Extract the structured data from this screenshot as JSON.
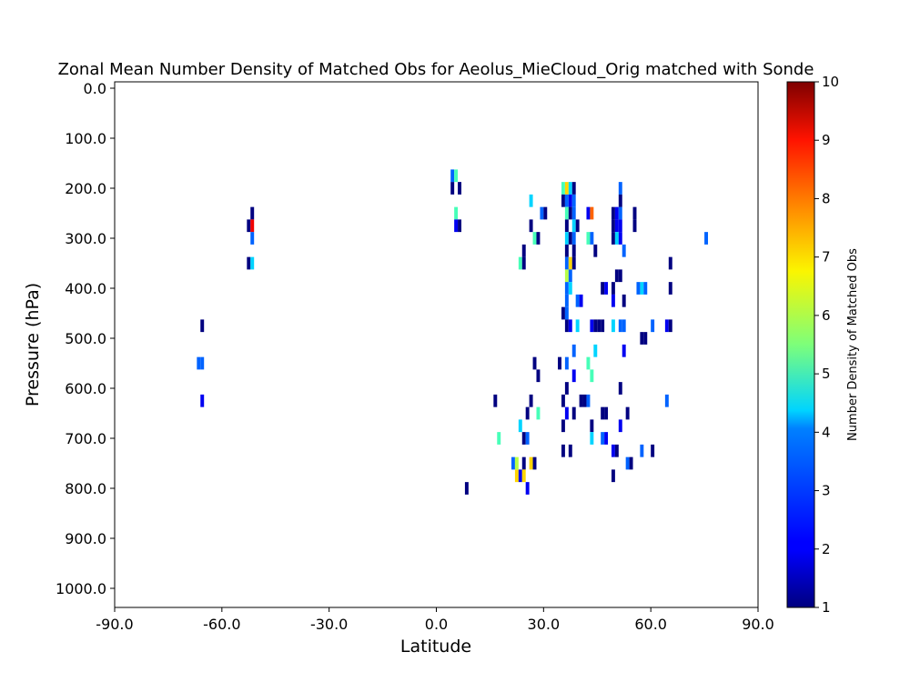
{
  "chart_data": {
    "type": "heatmap",
    "title": "Zonal Mean Number Density of Matched Obs for Aeolus_MieCloud_Orig matched with Sonde",
    "xlabel": "Latitude",
    "ylabel": "Pressure (hPa)",
    "xlim": [
      -90,
      90
    ],
    "ylim": [
      1000,
      0
    ],
    "y_inverted": true,
    "xticks": [
      "-90.0",
      "-60.0",
      "-30.0",
      "0.0",
      "30.0",
      "60.0",
      "90.0"
    ],
    "xtick_values": [
      -90,
      -60,
      -30,
      0,
      30,
      60,
      90
    ],
    "yticks": [
      "0.0",
      "100.0",
      "200.0",
      "300.0",
      "400.0",
      "500.0",
      "600.0",
      "700.0",
      "800.0",
      "900.0",
      "1000.0"
    ],
    "ytick_values": [
      0,
      100,
      200,
      300,
      400,
      500,
      600,
      700,
      800,
      900,
      1000
    ],
    "cell_width_deg": 1,
    "cell_height_hpa": 25,
    "colormap": "jet",
    "colorbar": {
      "label": "Number Density of Matched Obs",
      "vmin": 1,
      "vmax": 10,
      "ticks": [
        "1",
        "2",
        "3",
        "4",
        "5",
        "6",
        "7",
        "8",
        "9",
        "10"
      ]
    },
    "grid": false,
    "cells": [
      [
        -52,
        250,
        1
      ],
      [
        -53,
        275,
        1
      ],
      [
        -52,
        275,
        9
      ],
      [
        -52,
        300,
        3
      ],
      [
        -53,
        350,
        1
      ],
      [
        -52,
        350,
        4
      ],
      [
        -66,
        475,
        1
      ],
      [
        -67,
        550,
        3
      ],
      [
        -66,
        550,
        3
      ],
      [
        -66,
        625,
        2
      ],
      [
        4,
        175,
        3
      ],
      [
        5,
        175,
        5
      ],
      [
        4,
        200,
        1
      ],
      [
        6,
        200,
        1
      ],
      [
        5,
        250,
        5
      ],
      [
        5,
        275,
        2
      ],
      [
        6,
        275,
        1
      ],
      [
        8,
        800,
        1
      ],
      [
        26,
        225,
        4
      ],
      [
        29,
        250,
        3
      ],
      [
        30,
        250,
        1
      ],
      [
        26,
        275,
        1
      ],
      [
        27,
        300,
        5
      ],
      [
        28,
        300,
        1
      ],
      [
        24,
        325,
        1
      ],
      [
        23,
        350,
        5
      ],
      [
        24,
        350,
        1
      ],
      [
        35,
        200,
        5
      ],
      [
        36,
        200,
        7
      ],
      [
        37,
        200,
        4
      ],
      [
        38,
        200,
        1
      ],
      [
        35,
        225,
        1
      ],
      [
        36,
        225,
        3
      ],
      [
        37,
        225,
        2
      ],
      [
        38,
        225,
        3
      ],
      [
        36,
        250,
        5
      ],
      [
        37,
        250,
        1
      ],
      [
        38,
        250,
        3
      ],
      [
        36,
        275,
        1
      ],
      [
        38,
        275,
        4
      ],
      [
        39,
        275,
        1
      ],
      [
        36,
        300,
        4
      ],
      [
        37,
        300,
        1
      ],
      [
        38,
        300,
        3
      ],
      [
        36,
        325,
        1
      ],
      [
        38,
        325,
        1
      ],
      [
        36,
        350,
        3
      ],
      [
        37,
        350,
        7
      ],
      [
        38,
        350,
        1
      ],
      [
        36,
        375,
        6
      ],
      [
        37,
        375,
        3
      ],
      [
        36,
        400,
        3
      ],
      [
        37,
        400,
        4
      ],
      [
        36,
        425,
        3
      ],
      [
        39,
        425,
        3
      ],
      [
        40,
        425,
        2
      ],
      [
        35,
        450,
        1
      ],
      [
        36,
        450,
        3
      ],
      [
        36,
        475,
        1
      ],
      [
        37,
        475,
        2
      ],
      [
        39,
        475,
        4
      ],
      [
        42,
        250,
        2
      ],
      [
        43,
        250,
        8
      ],
      [
        42,
        300,
        5
      ],
      [
        43,
        300,
        3
      ],
      [
        44,
        325,
        1
      ],
      [
        46,
        400,
        1
      ],
      [
        47,
        400,
        2
      ],
      [
        43,
        475,
        2
      ],
      [
        44,
        475,
        1
      ],
      [
        45,
        475,
        1
      ],
      [
        46,
        475,
        1
      ],
      [
        49,
        250,
        1
      ],
      [
        50,
        250,
        2
      ],
      [
        51,
        250,
        3
      ],
      [
        49,
        275,
        1
      ],
      [
        50,
        275,
        2
      ],
      [
        51,
        275,
        2
      ],
      [
        49,
        300,
        1
      ],
      [
        50,
        300,
        4
      ],
      [
        51,
        300,
        2
      ],
      [
        51,
        200,
        3
      ],
      [
        51,
        225,
        1
      ],
      [
        55,
        250,
        1
      ],
      [
        55,
        275,
        1
      ],
      [
        52,
        325,
        3
      ],
      [
        50,
        375,
        1
      ],
      [
        51,
        375,
        1
      ],
      [
        49,
        400,
        1
      ],
      [
        49,
        425,
        2
      ],
      [
        52,
        425,
        1
      ],
      [
        57,
        400,
        4
      ],
      [
        58,
        400,
        3
      ],
      [
        56,
        400,
        3
      ],
      [
        49,
        475,
        4
      ],
      [
        51,
        475,
        3
      ],
      [
        52,
        475,
        3
      ],
      [
        57,
        500,
        1
      ],
      [
        58,
        500,
        1
      ],
      [
        60,
        475,
        3
      ],
      [
        64,
        475,
        2
      ],
      [
        65,
        475,
        1
      ],
      [
        65,
        350,
        1
      ],
      [
        65,
        400,
        1
      ],
      [
        75,
        300,
        3
      ],
      [
        38,
        525,
        3
      ],
      [
        44,
        525,
        4
      ],
      [
        52,
        525,
        2
      ],
      [
        34,
        550,
        1
      ],
      [
        36,
        550,
        3
      ],
      [
        42,
        550,
        5
      ],
      [
        28,
        575,
        1
      ],
      [
        38,
        575,
        2
      ],
      [
        43,
        575,
        5
      ],
      [
        36,
        600,
        1
      ],
      [
        51,
        600,
        1
      ],
      [
        27,
        550,
        1
      ],
      [
        16,
        625,
        1
      ],
      [
        26,
        625,
        1
      ],
      [
        35,
        625,
        1
      ],
      [
        40,
        625,
        1
      ],
      [
        41,
        625,
        1
      ],
      [
        42,
        625,
        3
      ],
      [
        64,
        625,
        3
      ],
      [
        25,
        650,
        1
      ],
      [
        28,
        650,
        5
      ],
      [
        36,
        650,
        2
      ],
      [
        38,
        650,
        1
      ],
      [
        46,
        650,
        1
      ],
      [
        47,
        650,
        1
      ],
      [
        53,
        650,
        1
      ],
      [
        23,
        675,
        4
      ],
      [
        35,
        675,
        1
      ],
      [
        43,
        675,
        1
      ],
      [
        51,
        675,
        2
      ],
      [
        17,
        700,
        5
      ],
      [
        24,
        700,
        1
      ],
      [
        25,
        700,
        3
      ],
      [
        43,
        700,
        4
      ],
      [
        46,
        700,
        3
      ],
      [
        47,
        700,
        2
      ],
      [
        35,
        725,
        1
      ],
      [
        37,
        725,
        1
      ],
      [
        49,
        725,
        2
      ],
      [
        50,
        725,
        1
      ],
      [
        57,
        725,
        3
      ],
      [
        60,
        725,
        1
      ],
      [
        21,
        750,
        3
      ],
      [
        22,
        750,
        6
      ],
      [
        24,
        750,
        1
      ],
      [
        26,
        750,
        7
      ],
      [
        27,
        750,
        1
      ],
      [
        53,
        750,
        3
      ],
      [
        54,
        750,
        1
      ],
      [
        22,
        775,
        7
      ],
      [
        23,
        775,
        2
      ],
      [
        24,
        775,
        7
      ],
      [
        49,
        775,
        1
      ],
      [
        25,
        800,
        2
      ]
    ]
  }
}
